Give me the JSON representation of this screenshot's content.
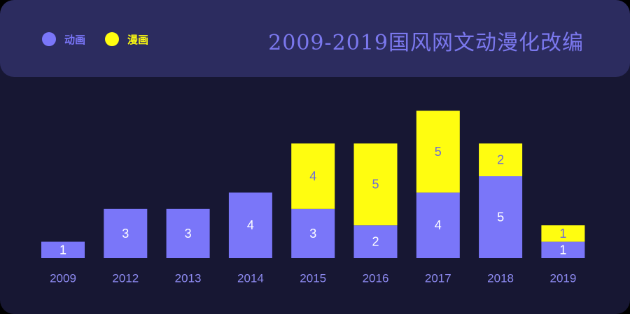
{
  "colors": {
    "background": "#171733",
    "header": "#2c2c5f",
    "anime": "#7a76f9",
    "manga": "#fffd10",
    "label_on_anime": "#ffffff",
    "label_on_manga": "#6d6bd9",
    "tick": "#8d8af0",
    "title": "#7b78ee"
  },
  "chart_data": {
    "type": "bar",
    "stacked": true,
    "title": "2009-2019国风网文动漫化改编",
    "categories": [
      "2009",
      "2012",
      "2013",
      "2014",
      "2015",
      "2016",
      "2017",
      "2018",
      "2019"
    ],
    "series": [
      {
        "name": "动画",
        "values": [
          1,
          3,
          3,
          4,
          3,
          2,
          4,
          5,
          1
        ]
      },
      {
        "name": "漫画",
        "values": [
          0,
          0,
          0,
          0,
          4,
          5,
          5,
          2,
          1
        ]
      }
    ],
    "legend_position": "top-left",
    "ylim": [
      0,
      10
    ],
    "grid": false
  }
}
